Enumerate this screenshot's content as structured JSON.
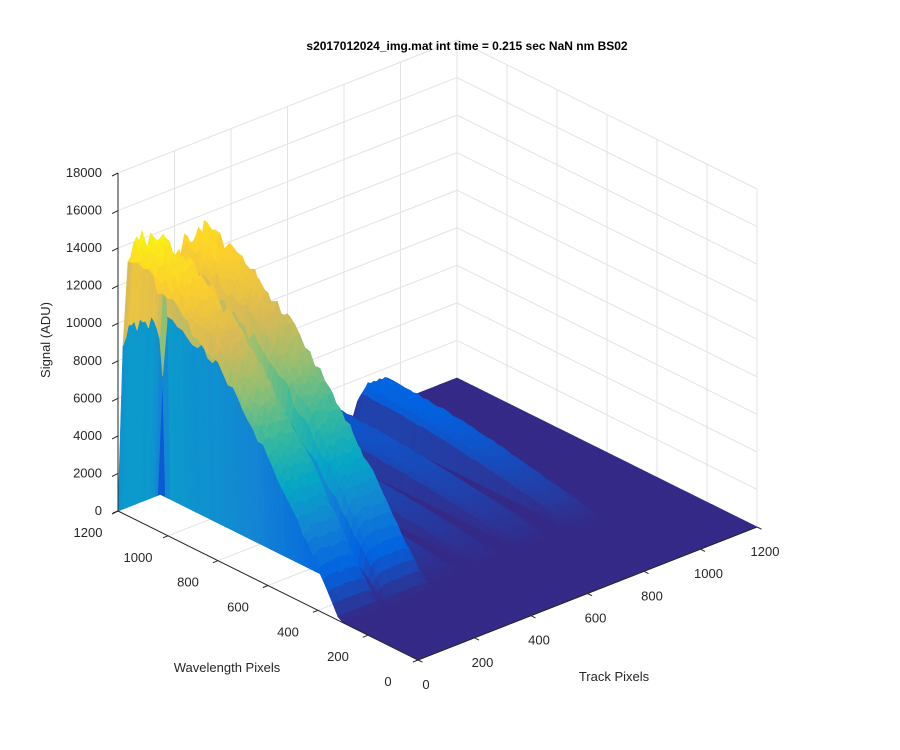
{
  "chart_data": {
    "type": "surface3d",
    "title": "s2017012024_img.mat int time = 0.215 sec  NaN nm BS02",
    "xlabel": "Track Pixels",
    "ylabel": "Wavelength Pixels",
    "zlabel": "Signal (ADU)",
    "xlim": [
      0,
      1200
    ],
    "ylim": [
      0,
      1200
    ],
    "zlim": [
      0,
      18000
    ],
    "xticks": [
      "0",
      "200",
      "400",
      "600",
      "800",
      "1000",
      "1200"
    ],
    "yticks": [
      "0",
      "200",
      "400",
      "600",
      "800",
      "1000",
      "1200"
    ],
    "zticks": [
      "0",
      "2000",
      "4000",
      "6000",
      "8000",
      "10000",
      "12000",
      "14000",
      "16000",
      "18000"
    ],
    "grid": true,
    "colormap": "parula",
    "peak_signal_approx": 15000,
    "bands": [
      {
        "track_center": 60,
        "track_width": 90,
        "peak": 15000
      },
      {
        "track_center": 240,
        "track_width": 85,
        "peak": 14200
      },
      {
        "track_center": 380,
        "track_width": 60,
        "peak": 1600
      },
      {
        "track_center": 540,
        "track_width": 50,
        "peak": 1200
      },
      {
        "track_center": 700,
        "track_width": 60,
        "peak": 1500
      },
      {
        "track_center": 880,
        "track_width": 60,
        "peak": 2100
      }
    ]
  }
}
